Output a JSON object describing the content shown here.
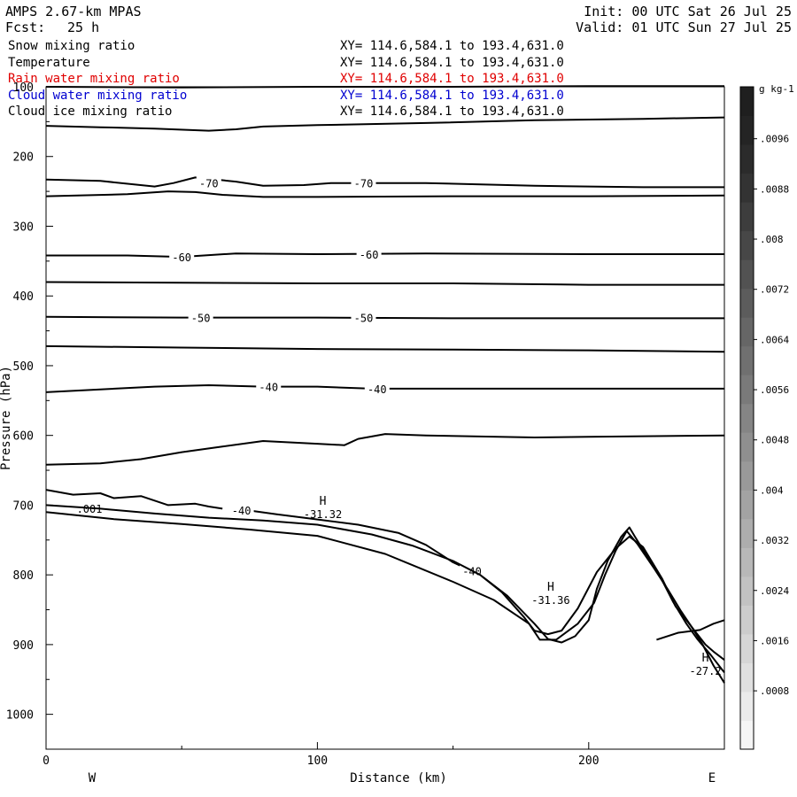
{
  "header": {
    "model": "AMPS 2.67-km MPAS",
    "fcst_label": "Fcst:",
    "fcst_value": "25 h",
    "init": "Init: 00 UTC Sat 26 Jul 25",
    "valid": "Valid: 01 UTC Sun 27 Jul 25"
  },
  "legend": [
    {
      "name": "Snow mixing ratio",
      "xy": "XY= 114.6,584.1 to 193.4,631.0",
      "color": "#000000"
    },
    {
      "name": "Temperature",
      "xy": "XY= 114.6,584.1 to 193.4,631.0",
      "color": "#000000"
    },
    {
      "name": "Rain water mixing ratio",
      "xy": "XY= 114.6,584.1 to 193.4,631.0",
      "color": "#e00000"
    },
    {
      "name": "Cloud water mixing ratio",
      "xy": "XY= 114.6,584.1 to 193.4,631.0",
      "color": "#0000d0"
    },
    {
      "name": "Cloud ice mixing ratio",
      "xy": "XY= 114.6,584.1 to 193.4,631.0",
      "color": "#000000"
    }
  ],
  "chart_data": {
    "type": "contour",
    "xlabel": "Distance (km)",
    "ylabel": "Pressure (hPa)",
    "xlim": [
      0,
      250
    ],
    "ylim": [
      1050,
      100
    ],
    "y_inverted": true,
    "x_ticks": [
      0,
      100,
      200
    ],
    "y_ticks": [
      100,
      200,
      300,
      400,
      500,
      600,
      700,
      800,
      900,
      1000
    ],
    "x_end_labels": {
      "left": "W",
      "right": "E"
    },
    "isotherms": [
      {
        "label": "",
        "points": [
          [
            0,
            100
          ],
          [
            50,
            101
          ],
          [
            100,
            100
          ],
          [
            150,
            100
          ],
          [
            200,
            99
          ],
          [
            250,
            99
          ]
        ]
      },
      {
        "label": "",
        "points": [
          [
            0,
            156
          ],
          [
            20,
            158
          ],
          [
            40,
            160
          ],
          [
            60,
            163
          ],
          [
            70,
            161
          ],
          [
            80,
            157
          ],
          [
            100,
            155
          ],
          [
            140,
            152
          ],
          [
            180,
            148
          ],
          [
            220,
            146
          ],
          [
            250,
            144
          ]
        ]
      },
      {
        "label": "-70",
        "points": [
          [
            0,
            233
          ],
          [
            20,
            235
          ],
          [
            40,
            243
          ],
          [
            47,
            238
          ],
          [
            55,
            230
          ],
          [
            70,
            236
          ],
          [
            80,
            242
          ],
          [
            95,
            241
          ],
          [
            105,
            238
          ],
          [
            140,
            238
          ],
          [
            180,
            242
          ],
          [
            220,
            244
          ],
          [
            250,
            244
          ]
        ]
      },
      {
        "label": "",
        "points": [
          [
            0,
            257
          ],
          [
            30,
            254
          ],
          [
            45,
            250
          ],
          [
            55,
            251
          ],
          [
            65,
            255
          ],
          [
            80,
            258
          ],
          [
            100,
            258
          ],
          [
            150,
            257
          ],
          [
            200,
            257
          ],
          [
            250,
            256
          ]
        ]
      },
      {
        "label": "-60",
        "points": [
          [
            0,
            342
          ],
          [
            30,
            342
          ],
          [
            50,
            344
          ],
          [
            70,
            339
          ],
          [
            100,
            340
          ],
          [
            140,
            339
          ],
          [
            200,
            340
          ],
          [
            250,
            340
          ]
        ]
      },
      {
        "label": "",
        "points": [
          [
            0,
            380
          ],
          [
            50,
            381
          ],
          [
            100,
            382
          ],
          [
            150,
            382
          ],
          [
            200,
            384
          ],
          [
            250,
            384
          ]
        ]
      },
      {
        "label": "-50",
        "points": [
          [
            0,
            430
          ],
          [
            50,
            431
          ],
          [
            100,
            431
          ],
          [
            150,
            432
          ],
          [
            200,
            432
          ],
          [
            250,
            432
          ]
        ]
      },
      {
        "label": "",
        "points": [
          [
            0,
            472
          ],
          [
            50,
            474
          ],
          [
            100,
            476
          ],
          [
            150,
            477
          ],
          [
            200,
            478
          ],
          [
            250,
            480
          ]
        ]
      },
      {
        "label": "-40",
        "points": [
          [
            0,
            538
          ],
          [
            20,
            534
          ],
          [
            40,
            530
          ],
          [
            60,
            528
          ],
          [
            80,
            530
          ],
          [
            100,
            530
          ],
          [
            120,
            533
          ],
          [
            150,
            533
          ],
          [
            200,
            533
          ],
          [
            250,
            533
          ]
        ]
      },
      {
        "label": "",
        "points": [
          [
            0,
            642
          ],
          [
            20,
            640
          ],
          [
            35,
            634
          ],
          [
            50,
            624
          ],
          [
            65,
            616
          ],
          [
            80,
            608
          ],
          [
            100,
            612
          ],
          [
            110,
            614
          ],
          [
            115,
            605
          ],
          [
            125,
            598
          ],
          [
            140,
            600
          ],
          [
            180,
            603
          ],
          [
            200,
            602
          ],
          [
            250,
            600
          ]
        ]
      },
      {
        "label": "",
        "points": [
          [
            0,
            678
          ],
          [
            10,
            685
          ],
          [
            20,
            683
          ],
          [
            25,
            690
          ],
          [
            35,
            687
          ],
          [
            45,
            700
          ],
          [
            55,
            698
          ],
          [
            60,
            702
          ],
          [
            65,
            705
          ]
        ]
      },
      {
        "label": "-40",
        "points": [
          [
            70,
            705
          ],
          [
            85,
            713
          ],
          [
            95,
            718
          ],
          [
            115,
            728
          ],
          [
            130,
            740
          ],
          [
            140,
            757
          ],
          [
            150,
            782
          ],
          [
            160,
            800
          ],
          [
            168,
            825
          ],
          [
            176,
            860
          ],
          [
            180,
            880
          ],
          [
            185,
            885
          ],
          [
            190,
            880
          ],
          [
            196,
            848
          ],
          [
            203,
            796
          ],
          [
            210,
            762
          ],
          [
            215,
            745
          ],
          [
            220,
            760
          ],
          [
            227,
            805
          ],
          [
            232,
            845
          ],
          [
            237,
            870
          ],
          [
            240,
            885
          ],
          [
            243,
            900
          ],
          [
            246,
            910
          ],
          [
            250,
            922
          ]
        ]
      }
    ],
    "terrain_outlines": [
      {
        "label": ".001",
        "points": [
          [
            0,
            700
          ],
          [
            20,
            705
          ],
          [
            40,
            712
          ],
          [
            60,
            718
          ],
          [
            80,
            722
          ],
          [
            100,
            728
          ],
          [
            120,
            742
          ],
          [
            135,
            758
          ],
          [
            150,
            780
          ],
          [
            160,
            800
          ],
          [
            170,
            830
          ],
          [
            180,
            870
          ],
          [
            185,
            892
          ],
          [
            190,
            897
          ],
          [
            195,
            888
          ],
          [
            200,
            865
          ],
          [
            203,
            820
          ],
          [
            207,
            780
          ],
          [
            212,
            745
          ],
          [
            215,
            732
          ],
          [
            217,
            745
          ],
          [
            221,
            770
          ],
          [
            226,
            800
          ],
          [
            231,
            838
          ],
          [
            236,
            870
          ],
          [
            240,
            892
          ],
          [
            245,
            915
          ],
          [
            249,
            935
          ],
          [
            250,
            940
          ]
        ]
      },
      {
        "label": "",
        "points": [
          [
            0,
            710
          ],
          [
            25,
            720
          ],
          [
            50,
            727
          ],
          [
            75,
            735
          ],
          [
            100,
            744
          ],
          [
            125,
            770
          ],
          [
            150,
            810
          ],
          [
            165,
            836
          ],
          [
            178,
            870
          ],
          [
            182,
            893
          ],
          [
            188,
            893
          ],
          [
            196,
            870
          ],
          [
            202,
            840
          ],
          [
            206,
            800
          ],
          [
            210,
            765
          ],
          [
            214,
            737
          ],
          [
            218,
            756
          ],
          [
            224,
            790
          ],
          [
            229,
            820
          ],
          [
            234,
            852
          ],
          [
            238,
            875
          ],
          [
            242,
            900
          ],
          [
            246,
            930
          ],
          [
            250,
            955
          ]
        ]
      },
      {
        "label": "",
        "points": [
          [
            225,
            893
          ],
          [
            233,
            883
          ],
          [
            241,
            879
          ],
          [
            246,
            870
          ],
          [
            250,
            865
          ]
        ]
      }
    ],
    "annotations": [
      {
        "marker": "H",
        "value": "-31.32",
        "x": 102,
        "p": 707
      },
      {
        "marker": "H",
        "value": "-31.36",
        "x": 186,
        "p": 830
      },
      {
        "marker": "H",
        "value": "-27.2",
        "x": 243,
        "p": 932
      }
    ],
    "colorbar": {
      "unit": "g kg-1",
      "ticks": [
        ".0096",
        ".0088",
        ".008",
        ".0072",
        ".0064",
        ".0056",
        ".0048",
        ".004",
        ".0032",
        ".0024",
        ".0016",
        ".0008"
      ],
      "colors": [
        "#f5f5f5",
        "#ebebeb",
        "#e0e0e0",
        "#d6d6d6",
        "#cccccc",
        "#c2c2c2",
        "#b8b8b8",
        "#adadad",
        "#a3a3a3",
        "#999999",
        "#8f8f8f",
        "#858585",
        "#7a7a7a",
        "#707070",
        "#666666",
        "#5c5c5c",
        "#525252",
        "#474747",
        "#3d3d3d",
        "#333333",
        "#2b2b2b",
        "#242424",
        "#1f1f1f"
      ]
    }
  }
}
